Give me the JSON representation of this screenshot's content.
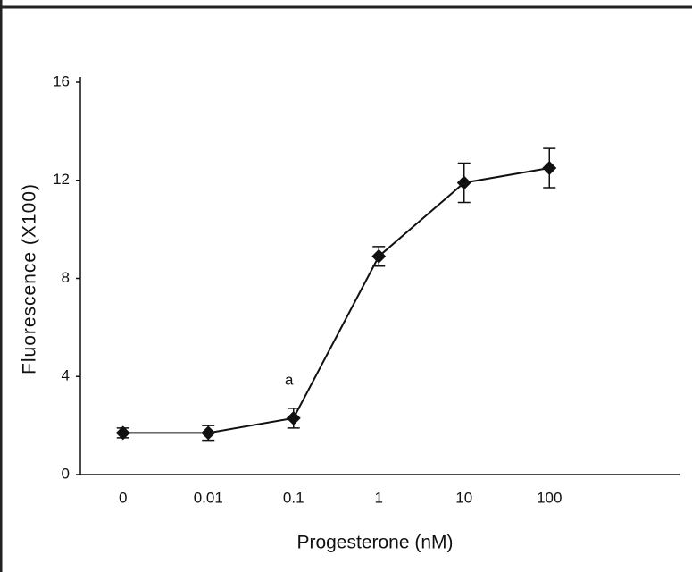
{
  "chart_data": {
    "type": "line",
    "xlabel": "Progesterone (nM)",
    "ylabel": "Fluorescence (X100)",
    "categories": [
      "0",
      "0.01",
      "0.1",
      "1",
      "10",
      "100"
    ],
    "values": [
      1.7,
      1.7,
      2.3,
      8.9,
      11.9,
      12.5
    ],
    "errors": [
      0.2,
      0.3,
      0.4,
      0.4,
      0.8,
      0.8
    ],
    "color": "#111111",
    "annotation": "a",
    "ylim": [
      0,
      16
    ],
    "yticks": [
      0,
      4,
      8,
      12,
      16
    ],
    "grid": false
  }
}
